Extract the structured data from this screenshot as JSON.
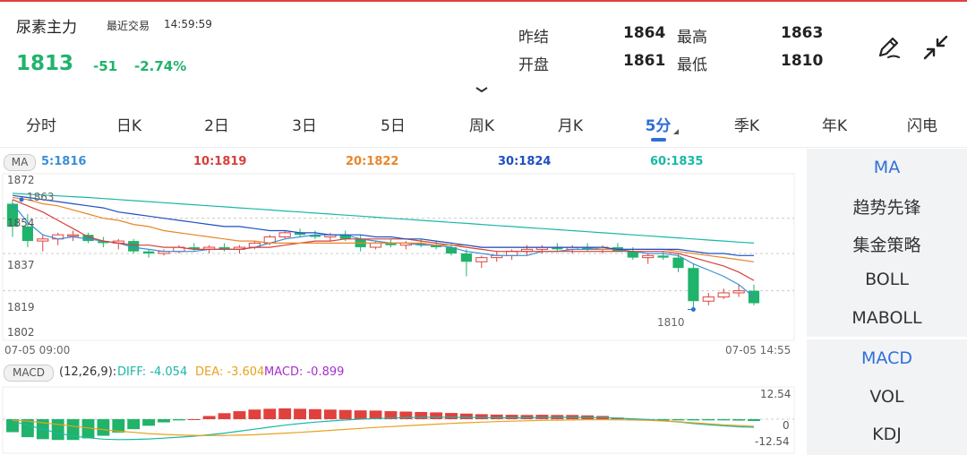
{
  "header": {
    "title": "尿素主力",
    "last_trade_label": "最近交易",
    "last_trade_time": "14:59:59",
    "price": "1813",
    "change": "-51",
    "change_pct": "-2.74%",
    "quotes": {
      "prev_settle_label": "昨结",
      "prev_settle": "1864",
      "high_label": "最高",
      "high": "1863",
      "open_label": "开盘",
      "open": "1861",
      "low_label": "最低",
      "low": "1810"
    },
    "icons": [
      "edit-pencil-icon",
      "collapse-arrows-icon",
      "chevron-down-icon"
    ]
  },
  "tabs": [
    "分时",
    "日K",
    "2日",
    "3日",
    "5日",
    "周K",
    "月K",
    "5分",
    "季K",
    "年K",
    "闪电"
  ],
  "active_tab": "5分",
  "ma_panel": {
    "tag": "MA",
    "ma5": "5:1816",
    "ma10": "10:1819",
    "ma20": "20:1822",
    "ma30": "30:1824",
    "ma60": "60:1835",
    "colors": {
      "ma5": "#3a8fd8",
      "ma10": "#d6403b",
      "ma20": "#e8862c",
      "ma30": "#1d4fc4",
      "ma60": "#19b8a6"
    },
    "y_labels": [
      "1872",
      "1854",
      "1837",
      "1819",
      "1802"
    ],
    "marker_high": "1863",
    "marker_low": "1810",
    "time_start": "07-05 09:00",
    "time_end": "07-05 14:55"
  },
  "macd_panel": {
    "tag": "MACD",
    "params": "(12,26,9):",
    "diff": "DIFF: -4.054",
    "dea": "DEA: -3.604",
    "macd": "MACD: -0.899",
    "colors": {
      "diff": "#19b8a6",
      "dea": "#e8a21c",
      "macd": "#a52fd0",
      "up": "#e0413d",
      "down": "#20b36b"
    },
    "y_top": "12.54",
    "y_mid": "0",
    "y_bottom": "-12.54"
  },
  "sidebar": {
    "main_indicators": [
      "MA",
      "趋势先锋",
      "集金策略",
      "BOLL",
      "MABOLL"
    ],
    "sub_indicators": [
      "MACD",
      "VOL",
      "KDJ"
    ],
    "active_main": "MA",
    "active_sub": "MACD"
  },
  "chart_data": {
    "type": "candlestick",
    "ylim": [
      1802,
      1872
    ],
    "candles": [
      [
        1861,
        1863,
        1845,
        1850
      ],
      [
        1850,
        1856,
        1840,
        1843
      ],
      [
        1843,
        1846,
        1838,
        1844
      ],
      [
        1844,
        1847,
        1841,
        1846
      ],
      [
        1846,
        1848,
        1843,
        1846
      ],
      [
        1846,
        1847,
        1842,
        1843
      ],
      [
        1843,
        1845,
        1840,
        1842
      ],
      [
        1842,
        1844,
        1839,
        1843
      ],
      [
        1843,
        1844,
        1837,
        1838
      ],
      [
        1838,
        1839,
        1835,
        1837
      ],
      [
        1837,
        1839,
        1836,
        1838
      ],
      [
        1838,
        1841,
        1837,
        1840
      ],
      [
        1840,
        1842,
        1838,
        1839
      ],
      [
        1839,
        1841,
        1837,
        1840
      ],
      [
        1840,
        1842,
        1838,
        1839
      ],
      [
        1839,
        1841,
        1837,
        1840
      ],
      [
        1840,
        1843,
        1839,
        1842
      ],
      [
        1842,
        1846,
        1841,
        1845
      ],
      [
        1845,
        1848,
        1844,
        1847
      ],
      [
        1847,
        1849,
        1845,
        1846
      ],
      [
        1846,
        1848,
        1844,
        1845
      ],
      [
        1845,
        1847,
        1843,
        1846
      ],
      [
        1846,
        1848,
        1843,
        1844
      ],
      [
        1844,
        1846,
        1838,
        1840
      ],
      [
        1840,
        1843,
        1839,
        1842
      ],
      [
        1842,
        1844,
        1840,
        1841
      ],
      [
        1841,
        1843,
        1839,
        1842
      ],
      [
        1842,
        1844,
        1840,
        1841
      ],
      [
        1841,
        1843,
        1839,
        1840
      ],
      [
        1840,
        1842,
        1836,
        1837
      ],
      [
        1837,
        1839,
        1826,
        1833
      ],
      [
        1833,
        1836,
        1830,
        1835
      ],
      [
        1835,
        1838,
        1833,
        1836
      ],
      [
        1836,
        1839,
        1834,
        1838
      ],
      [
        1838,
        1841,
        1836,
        1839
      ],
      [
        1839,
        1841,
        1837,
        1840
      ],
      [
        1840,
        1842,
        1838,
        1839
      ],
      [
        1839,
        1841,
        1837,
        1840
      ],
      [
        1840,
        1842,
        1838,
        1839
      ],
      [
        1839,
        1841,
        1837,
        1840
      ],
      [
        1840,
        1842,
        1838,
        1838
      ],
      [
        1838,
        1840,
        1834,
        1835
      ],
      [
        1835,
        1837,
        1832,
        1836
      ],
      [
        1836,
        1838,
        1834,
        1835
      ],
      [
        1835,
        1837,
        1828,
        1830
      ],
      [
        1830,
        1832,
        1811,
        1814
      ],
      [
        1814,
        1818,
        1812,
        1816
      ],
      [
        1816,
        1820,
        1815,
        1818
      ],
      [
        1818,
        1822,
        1816,
        1819
      ],
      [
        1819,
        1822,
        1812,
        1813
      ]
    ],
    "series": [
      {
        "name": "MA5",
        "values": [
          1861,
          1852,
          1846,
          1844,
          1845,
          1844,
          1843,
          1842,
          1840,
          1839,
          1838,
          1838,
          1838,
          1839,
          1839,
          1839,
          1840,
          1842,
          1844,
          1845,
          1846,
          1846,
          1846,
          1844,
          1843,
          1842,
          1842,
          1841,
          1841,
          1840,
          1838,
          1837,
          1836,
          1836,
          1836,
          1838,
          1838,
          1839,
          1839,
          1839,
          1839,
          1838,
          1837,
          1837,
          1836,
          1832,
          1829,
          1826,
          1822,
          1816
        ]
      },
      {
        "name": "MA10",
        "values": [
          1863,
          1860,
          1857,
          1853,
          1849,
          1845,
          1843,
          1842,
          1841,
          1841,
          1840,
          1840,
          1839,
          1839,
          1839,
          1839,
          1840,
          1840,
          1841,
          1842,
          1843,
          1843,
          1844,
          1844,
          1844,
          1844,
          1844,
          1843,
          1842,
          1841,
          1840,
          1839,
          1838,
          1838,
          1838,
          1838,
          1838,
          1838,
          1838,
          1838,
          1838,
          1838,
          1838,
          1838,
          1837,
          1835,
          1833,
          1831,
          1828,
          1824
        ]
      },
      {
        "name": "MA20",
        "values": [
          1864,
          1863,
          1861,
          1860,
          1858,
          1856,
          1854,
          1853,
          1851,
          1850,
          1848,
          1847,
          1846,
          1845,
          1844,
          1843,
          1843,
          1842,
          1842,
          1842,
          1842,
          1842,
          1842,
          1842,
          1842,
          1842,
          1842,
          1842,
          1841,
          1841,
          1841,
          1840,
          1840,
          1840,
          1840,
          1840,
          1840,
          1840,
          1840,
          1839,
          1839,
          1839,
          1839,
          1839,
          1838,
          1837,
          1836,
          1835,
          1834,
          1833
        ]
      },
      {
        "name": "MA30",
        "values": [
          1865,
          1864,
          1863,
          1862,
          1861,
          1860,
          1859,
          1857,
          1856,
          1855,
          1854,
          1853,
          1852,
          1851,
          1850,
          1850,
          1849,
          1848,
          1848,
          1847,
          1847,
          1846,
          1846,
          1846,
          1845,
          1845,
          1844,
          1844,
          1843,
          1842,
          1841,
          1840,
          1840,
          1840,
          1840,
          1840,
          1840,
          1840,
          1840,
          1840,
          1839,
          1839,
          1839,
          1839,
          1839,
          1838,
          1837,
          1837,
          1836,
          1836
        ]
      },
      {
        "name": "MA60",
        "values": [
          1866,
          1865.6,
          1865.2,
          1864.8,
          1864.4,
          1864,
          1863.5,
          1863,
          1862.5,
          1862,
          1861.5,
          1861,
          1860.5,
          1860,
          1859.5,
          1859,
          1858.5,
          1858,
          1857.5,
          1857,
          1856.5,
          1856,
          1855.5,
          1855,
          1854.5,
          1854,
          1853.5,
          1853,
          1852.5,
          1852,
          1851.5,
          1851,
          1850.5,
          1850,
          1849.5,
          1849,
          1848.5,
          1848,
          1847.5,
          1847,
          1846.5,
          1846,
          1845.5,
          1845,
          1844.5,
          1844,
          1843.5,
          1843,
          1842.5,
          1842
        ]
      }
    ],
    "macd": {
      "histogram": [
        -6.5,
        -9,
        -10,
        -10.4,
        -10.4,
        -9.6,
        -8.3,
        -6.7,
        -5,
        -3.3,
        -1.6,
        -0.6,
        0,
        1.6,
        3,
        4,
        4.8,
        5.2,
        5.4,
        5.2,
        5,
        4.8,
        4.6,
        4.4,
        4.3,
        4,
        3.8,
        3.6,
        3.4,
        3.1,
        2.8,
        2.5,
        2.3,
        2.2,
        2.1,
        2.2,
        2.1,
        2.1,
        1.9,
        1.6,
        0.8,
        0,
        -0.5,
        -0.6,
        -0.6,
        -0.6,
        -0.6,
        -0.6,
        -0.7,
        -0.9
      ],
      "diff": [
        -1,
        -3,
        -5,
        -7,
        -8.4,
        -9.3,
        -10,
        -10.2,
        -10.1,
        -9.9,
        -9.5,
        -9,
        -8.5,
        -7.8,
        -7,
        -6,
        -5,
        -4,
        -3,
        -2.2,
        -1.5,
        -0.9,
        -0.4,
        0,
        0.3,
        0.6,
        0.8,
        0.9,
        1,
        1,
        0.9,
        0.8,
        0.7,
        0.7,
        0.7,
        0.8,
        0.9,
        0.9,
        0.9,
        0.8,
        0.5,
        0.2,
        -0.2,
        -0.7,
        -1.4,
        -2.2,
        -2.8,
        -3.3,
        -3.8,
        -4.05
      ],
      "dea": [
        -0.5,
        -1,
        -1.8,
        -2.6,
        -3.5,
        -4.4,
        -5.2,
        -6,
        -6.6,
        -7.2,
        -7.6,
        -7.9,
        -8.1,
        -8.2,
        -8.1,
        -8,
        -7.8,
        -7.4,
        -7,
        -6.6,
        -6.1,
        -5.6,
        -5.1,
        -4.6,
        -4.1,
        -3.7,
        -3.3,
        -2.9,
        -2.5,
        -2.1,
        -1.8,
        -1.5,
        -1.2,
        -1,
        -0.8,
        -0.6,
        -0.5,
        -0.4,
        -0.3,
        -0.3,
        -0.3,
        -0.4,
        -0.6,
        -0.9,
        -1.3,
        -1.8,
        -2.3,
        -2.8,
        -3.2,
        -3.6
      ],
      "ylim": [
        -12.54,
        12.54
      ]
    }
  }
}
